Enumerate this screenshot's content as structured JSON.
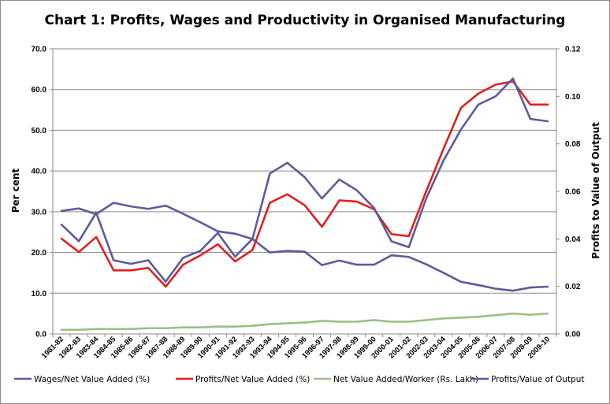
{
  "chart_data": {
    "type": "line",
    "title": "Chart 1: Profits, Wages and Productivity in Organised Manufacturing",
    "ylabel": "Per cent",
    "y2label": "Profits to Value of Output",
    "ylim": [
      0,
      70
    ],
    "y2lim": [
      0,
      0.12
    ],
    "yticks": [
      "0.0",
      "10.0",
      "20.0",
      "30.0",
      "40.0",
      "50.0",
      "60.0",
      "70.0"
    ],
    "y2ticks": [
      "0.00",
      "0.02",
      "0.04",
      "0.06",
      "0.08",
      "0.10",
      "0.12"
    ],
    "categories": [
      "1981-82",
      "1982-83",
      "1983-84",
      "1984-85",
      "1985-86",
      "1986-87",
      "1987-88",
      "1988-89",
      "1989-90",
      "1990-91",
      "1991-92",
      "1992-93",
      "1993-94",
      "1994-95",
      "1995-96",
      "1996-97",
      "1997-98",
      "1998-99",
      "1999-00",
      "2000-01",
      "2001-02",
      "2002-03",
      "2003-04",
      "2004-05",
      "2005-06",
      "2006-07",
      "2007-08",
      "2008-09",
      "2009-10"
    ],
    "legend_position": "bottom",
    "grid": "horizontal",
    "series": [
      {
        "name": "Wages/Net Value Added (%)",
        "axis": "left",
        "color": "#5b5b9c",
        "values": [
          30.2,
          30.8,
          29.4,
          32.2,
          31.3,
          30.7,
          31.5,
          29.5,
          27.4,
          25.2,
          24.6,
          23.3,
          20.0,
          20.4,
          20.2,
          16.9,
          18.0,
          17.0,
          17.0,
          19.3,
          18.9,
          17.1,
          15.0,
          12.8,
          12.0,
          11.1,
          10.6,
          11.4,
          11.6
        ]
      },
      {
        "name": "Profits/Net Value Added (%)",
        "axis": "left",
        "color": "#e02020",
        "values": [
          23.4,
          20.1,
          23.8,
          15.6,
          15.6,
          16.2,
          11.6,
          17.0,
          19.3,
          22.0,
          17.8,
          20.6,
          32.2,
          34.3,
          31.6,
          26.3,
          32.8,
          32.5,
          30.6,
          24.5,
          24.0,
          35.0,
          45.5,
          55.5,
          59.0,
          61.2,
          62.0,
          56.3,
          56.3
        ]
      },
      {
        "name": "Net Value Added/Worker (Rs. Lakh)",
        "axis": "left",
        "color": "#9bbf85",
        "values": [
          1.0,
          1.0,
          1.2,
          1.2,
          1.2,
          1.4,
          1.4,
          1.6,
          1.6,
          1.8,
          1.8,
          2.0,
          2.4,
          2.6,
          2.8,
          3.2,
          3.0,
          3.0,
          3.4,
          3.0,
          3.0,
          3.4,
          3.8,
          4.0,
          4.2,
          4.6,
          5.0,
          4.7,
          5.0
        ]
      },
      {
        "name": "Profits/Value of Output",
        "axis": "right",
        "color": "#5b5b9c",
        "values": [
          0.046,
          0.039,
          0.051,
          0.031,
          0.0295,
          0.031,
          0.022,
          0.032,
          0.035,
          0.0425,
          0.0325,
          0.04,
          0.0675,
          0.072,
          0.066,
          0.057,
          0.065,
          0.0605,
          0.053,
          0.039,
          0.0365,
          0.057,
          0.073,
          0.086,
          0.0965,
          0.1,
          0.1075,
          0.0905,
          0.0895
        ]
      }
    ]
  }
}
